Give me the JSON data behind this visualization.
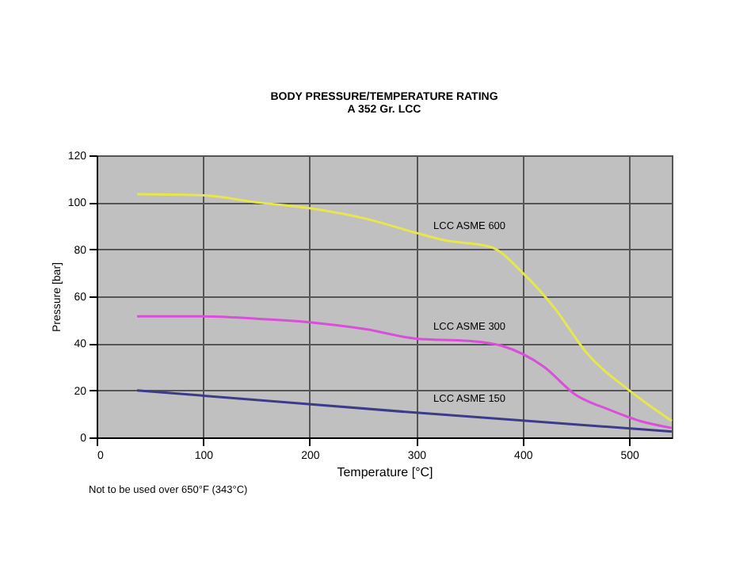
{
  "chart_data": {
    "type": "line",
    "title": "BODY PRESSURE/TEMPERATURE RATING",
    "subtitle": "A 352 Gr. LCC",
    "xlabel": "Temperature [°C]",
    "ylabel": "Pressure [bar]",
    "xlim": [
      0,
      540
    ],
    "xticks": [
      0,
      100,
      200,
      300,
      400,
      500
    ],
    "ylim": [
      0,
      120
    ],
    "yticks": [
      0,
      20,
      40,
      60,
      80,
      100,
      120
    ],
    "grid": true,
    "legend": false,
    "marker": "none",
    "line_style": "solid",
    "annotations": [
      "Not to be used over 650°F (343°C)"
    ],
    "series": [
      {
        "name": "LCC ASME 600",
        "color": "#e6e64d",
        "x": [
          38,
          100,
          150,
          200,
          253,
          300,
          325,
          370,
          400,
          430,
          460,
          500,
          540
        ],
        "values": [
          103.5,
          103,
          100,
          97.5,
          93,
          87,
          84,
          81,
          70,
          55,
          36,
          20,
          7
        ]
      },
      {
        "name": "LCC ASME 300",
        "color": "#d94fd9",
        "x": [
          38,
          100,
          150,
          200,
          253,
          300,
          350,
          380,
          420,
          450,
          480,
          510,
          540
        ],
        "values": [
          51.5,
          51.5,
          50.5,
          49,
          46,
          42,
          41,
          39,
          30,
          18,
          12,
          7,
          4
        ]
      },
      {
        "name": "LCC ASME 150",
        "color": "#3b3b8a",
        "x": [
          38,
          300,
          540
        ],
        "values": [
          20,
          10.5,
          2.5
        ]
      }
    ]
  }
}
